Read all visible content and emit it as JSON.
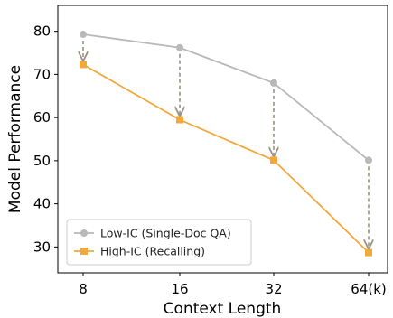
{
  "chart_data": {
    "type": "line",
    "xlabel": "Context Length",
    "ylabel": "Model Performance",
    "categories": [
      "8",
      "16",
      "32",
      "64(k)"
    ],
    "ylim": [
      24,
      86
    ],
    "yticks": [
      30,
      40,
      50,
      60,
      70,
      80
    ],
    "grid": false,
    "legend_position": "lower-left",
    "series": [
      {
        "name": "Low-IC (Single-Doc QA)",
        "values": [
          79.3,
          76.2,
          68.0,
          50.1
        ],
        "color": "#b9b9b9",
        "marker": "circle"
      },
      {
        "name": "High-IC (Recalling)",
        "values": [
          72.3,
          59.5,
          50.1,
          28.7
        ],
        "color": "#f2a93b",
        "marker": "square"
      }
    ],
    "annotations": {
      "type": "dashed-arrows",
      "from_series": 0,
      "to_series": 1,
      "color": "#9b9184"
    }
  }
}
